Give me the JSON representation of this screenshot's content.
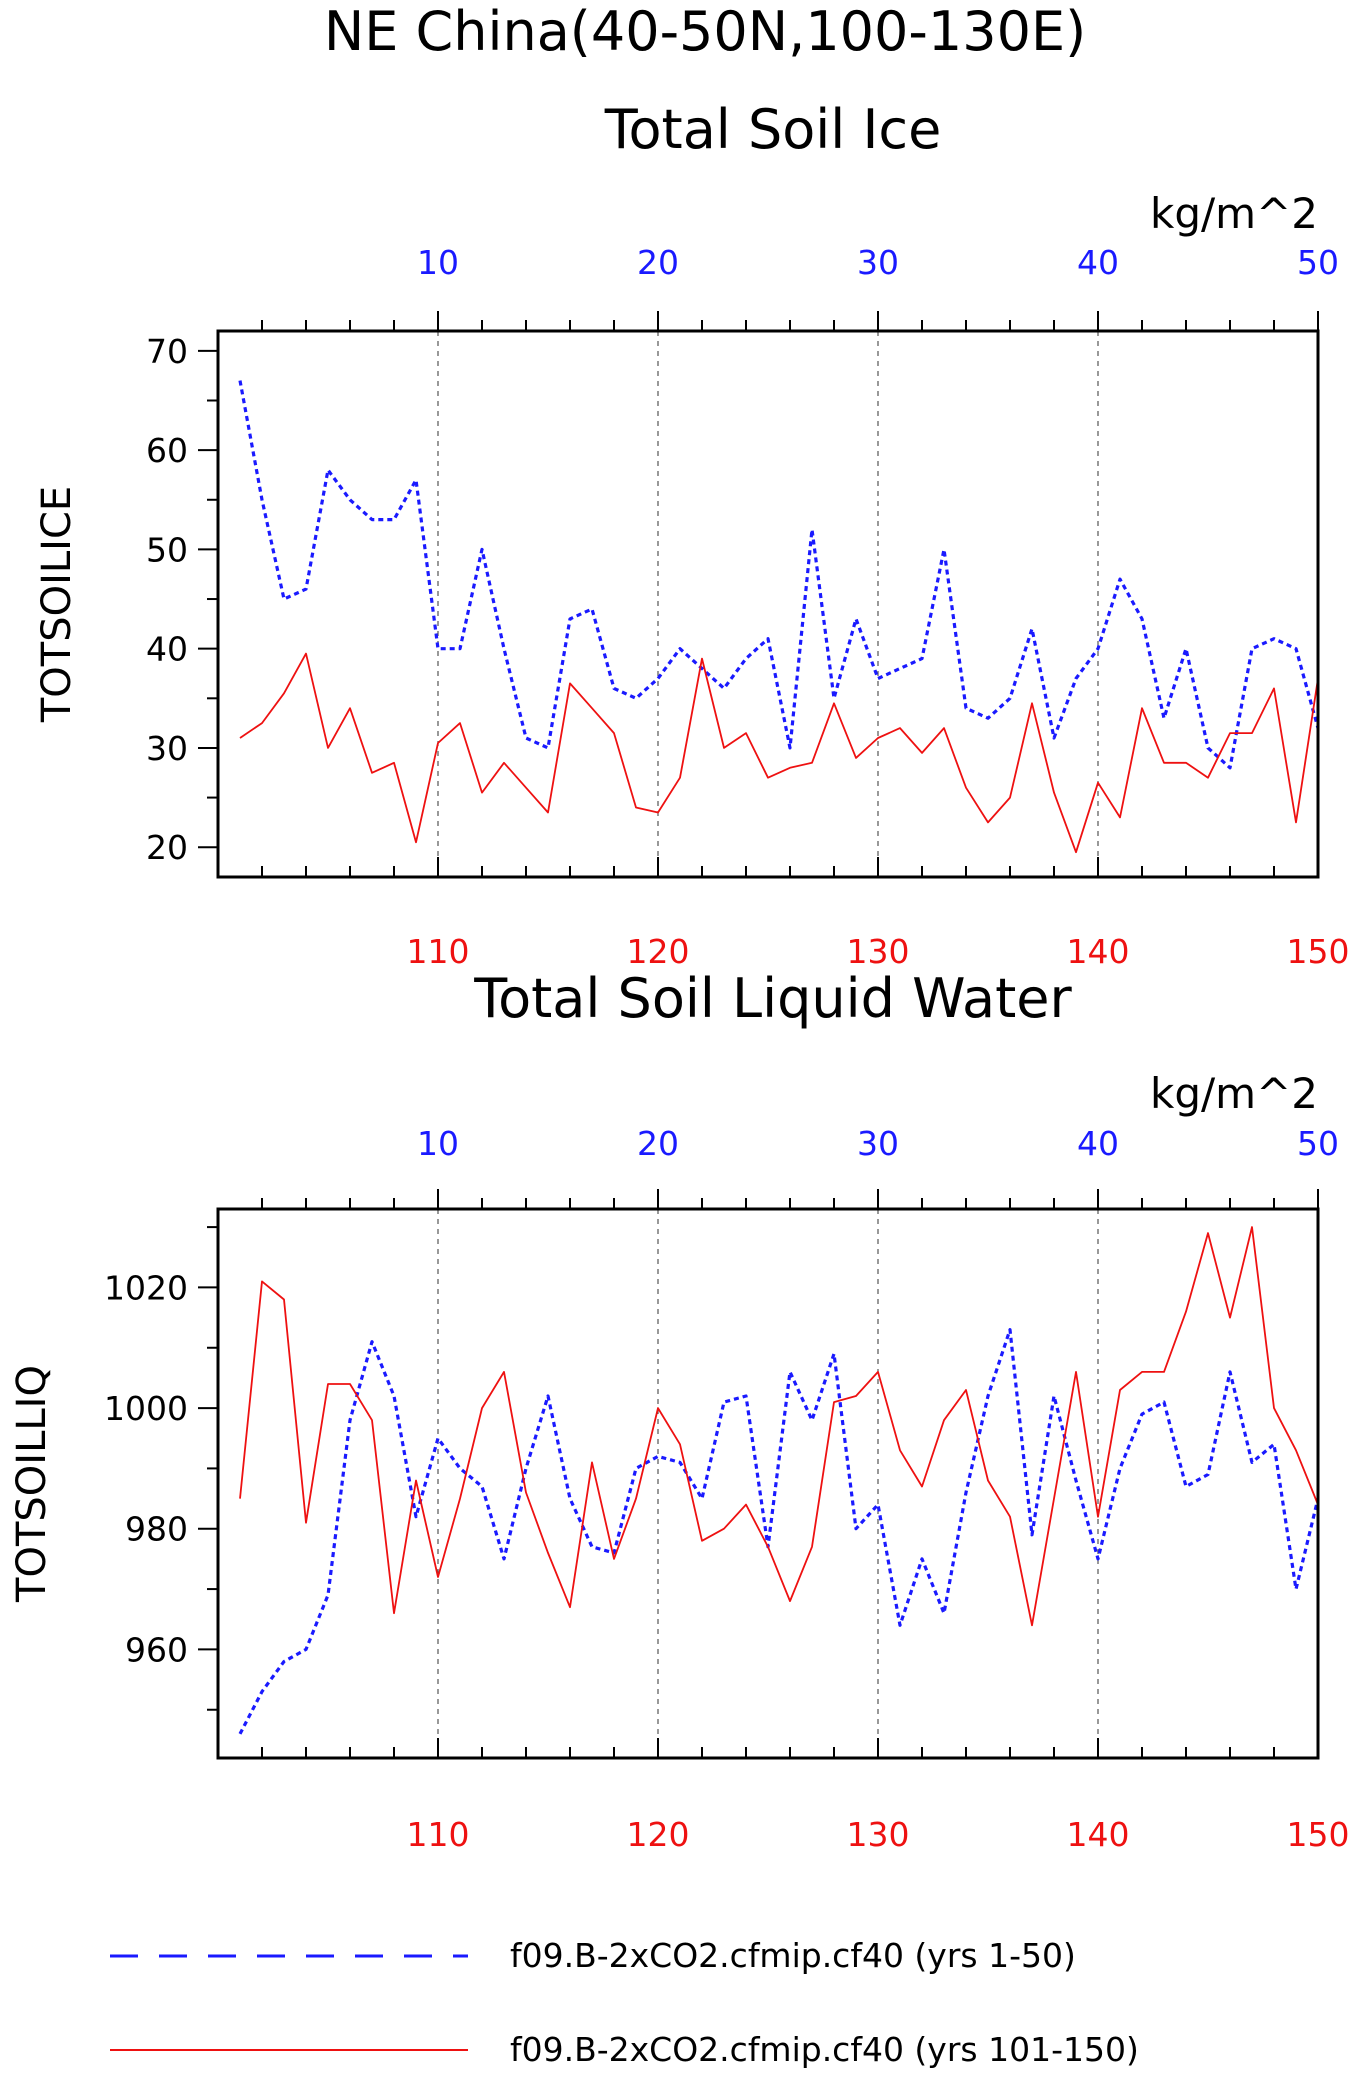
{
  "page": {
    "title_line1": "NE China(40-50N,100-130E)"
  },
  "colors": {
    "blue": "#1a1aff",
    "red": "#ee1111",
    "axis": "#000000",
    "grid": "#555555"
  },
  "chart_data": [
    {
      "type": "line",
      "title": "Total Soil Ice",
      "ylabel": "TOTSOILICE",
      "units": "kg/m^2",
      "ylim": [
        17,
        72
      ],
      "yticks": [
        20,
        30,
        40,
        50,
        60,
        70
      ],
      "top_axis": {
        "range": [
          1,
          50
        ],
        "ticks": [
          10,
          20,
          30,
          40,
          50
        ],
        "color": "blue"
      },
      "bottom_axis": {
        "range": [
          101,
          150
        ],
        "ticks": [
          110,
          120,
          130,
          140,
          150
        ],
        "color": "red"
      },
      "grid": "vertical dashed at ticks 10,20,30,40",
      "series": [
        {
          "axis": "top",
          "style": "dashed",
          "color": "blue",
          "x": [
            1,
            2,
            3,
            4,
            5,
            6,
            7,
            8,
            9,
            10,
            11,
            12,
            13,
            14,
            15,
            16,
            17,
            18,
            19,
            20,
            21,
            22,
            23,
            24,
            25,
            26,
            27,
            28,
            29,
            30,
            31,
            32,
            33,
            34,
            35,
            36,
            37,
            38,
            39,
            40,
            41,
            42,
            43,
            44,
            45,
            46,
            47,
            48,
            49,
            50
          ],
          "y": [
            67,
            55,
            45,
            46,
            58,
            55,
            53,
            53,
            57,
            40,
            40,
            50,
            40,
            31,
            30,
            43,
            44,
            36,
            35,
            37,
            40,
            38,
            36,
            39,
            41,
            30,
            52,
            35,
            43,
            37,
            38,
            39,
            50,
            34,
            33,
            35,
            42,
            31,
            37,
            40,
            47,
            43,
            33,
            40,
            30,
            28,
            40,
            41,
            40,
            32
          ]
        },
        {
          "axis": "bottom",
          "style": "solid",
          "color": "red",
          "x": [
            101,
            102,
            103,
            104,
            105,
            106,
            107,
            108,
            109,
            110,
            111,
            112,
            113,
            114,
            115,
            116,
            117,
            118,
            119,
            120,
            121,
            122,
            123,
            124,
            125,
            126,
            127,
            128,
            129,
            130,
            131,
            132,
            133,
            134,
            135,
            136,
            137,
            138,
            139,
            140,
            141,
            142,
            143,
            144,
            145,
            146,
            147,
            148,
            149,
            150
          ],
          "y": [
            31,
            32.5,
            35.5,
            39.5,
            30,
            34,
            27.5,
            28.5,
            20.5,
            30.5,
            32.5,
            25.5,
            28.5,
            26,
            23.5,
            36.5,
            34,
            31.5,
            24,
            23.5,
            27,
            39,
            30,
            31.5,
            27,
            28,
            28.5,
            34.5,
            29,
            31,
            32,
            29.5,
            32,
            26,
            22.5,
            25,
            34.5,
            25.5,
            19.5,
            26.5,
            23,
            34,
            28.5,
            28.5,
            27,
            31.5,
            31.5,
            36,
            22.5,
            37
          ]
        }
      ]
    },
    {
      "type": "line",
      "title": "Total Soil Liquid Water",
      "ylabel": "TOTSOILLIQ",
      "units": "kg/m^2",
      "ylim": [
        942,
        1033
      ],
      "yticks": [
        960,
        980,
        1000,
        1020
      ],
      "top_axis": {
        "range": [
          1,
          50
        ],
        "ticks": [
          10,
          20,
          30,
          40,
          50
        ],
        "color": "blue"
      },
      "bottom_axis": {
        "range": [
          101,
          150
        ],
        "ticks": [
          110,
          120,
          130,
          140,
          150
        ],
        "color": "red"
      },
      "grid": "vertical dashed at ticks 10,20,30,40",
      "series": [
        {
          "axis": "top",
          "style": "dashed",
          "color": "blue",
          "x": [
            1,
            2,
            3,
            4,
            5,
            6,
            7,
            8,
            9,
            10,
            11,
            12,
            13,
            14,
            15,
            16,
            17,
            18,
            19,
            20,
            21,
            22,
            23,
            24,
            25,
            26,
            27,
            28,
            29,
            30,
            31,
            32,
            33,
            34,
            35,
            36,
            37,
            38,
            39,
            40,
            41,
            42,
            43,
            44,
            45,
            46,
            47,
            48,
            49,
            50
          ],
          "y": [
            946,
            953,
            958,
            960,
            969,
            998,
            1011,
            1002,
            982,
            995,
            990,
            987,
            975,
            990,
            1002,
            985,
            977,
            976,
            990,
            992,
            991,
            985,
            1001,
            1002,
            977,
            1006,
            998,
            1009,
            980,
            984,
            964,
            975,
            966,
            986,
            1002,
            1013,
            979,
            1002,
            988,
            975,
            990,
            999,
            1001,
            987,
            989,
            1006,
            991,
            994,
            970,
            985
          ]
        },
        {
          "axis": "bottom",
          "style": "solid",
          "color": "red",
          "x": [
            101,
            102,
            103,
            104,
            105,
            106,
            107,
            108,
            109,
            110,
            111,
            112,
            113,
            114,
            115,
            116,
            117,
            118,
            119,
            120,
            121,
            122,
            123,
            124,
            125,
            126,
            127,
            128,
            129,
            130,
            131,
            132,
            133,
            134,
            135,
            136,
            137,
            138,
            139,
            140,
            141,
            142,
            143,
            144,
            145,
            146,
            147,
            148,
            149,
            150
          ],
          "y": [
            985,
            1021,
            1018,
            981,
            1004,
            1004,
            998,
            966,
            988,
            972,
            985,
            1000,
            1006,
            986,
            976,
            967,
            991,
            975,
            985,
            1000,
            994,
            978,
            980,
            984,
            977,
            968,
            977,
            1001,
            1002,
            1006,
            993,
            987,
            998,
            1003,
            988,
            982,
            964,
            985,
            1006,
            982,
            1003,
            1006,
            1006,
            1016,
            1029,
            1015,
            1030,
            1000,
            993,
            984
          ]
        }
      ]
    }
  ],
  "legend": {
    "entries": [
      {
        "label": "f09.B-2xCO2.cfmip.cf40 (yrs 1-50)",
        "style": "dashed",
        "color": "blue"
      },
      {
        "label": "f09.B-2xCO2.cfmip.cf40 (yrs 101-150)",
        "style": "solid",
        "color": "red"
      }
    ]
  }
}
